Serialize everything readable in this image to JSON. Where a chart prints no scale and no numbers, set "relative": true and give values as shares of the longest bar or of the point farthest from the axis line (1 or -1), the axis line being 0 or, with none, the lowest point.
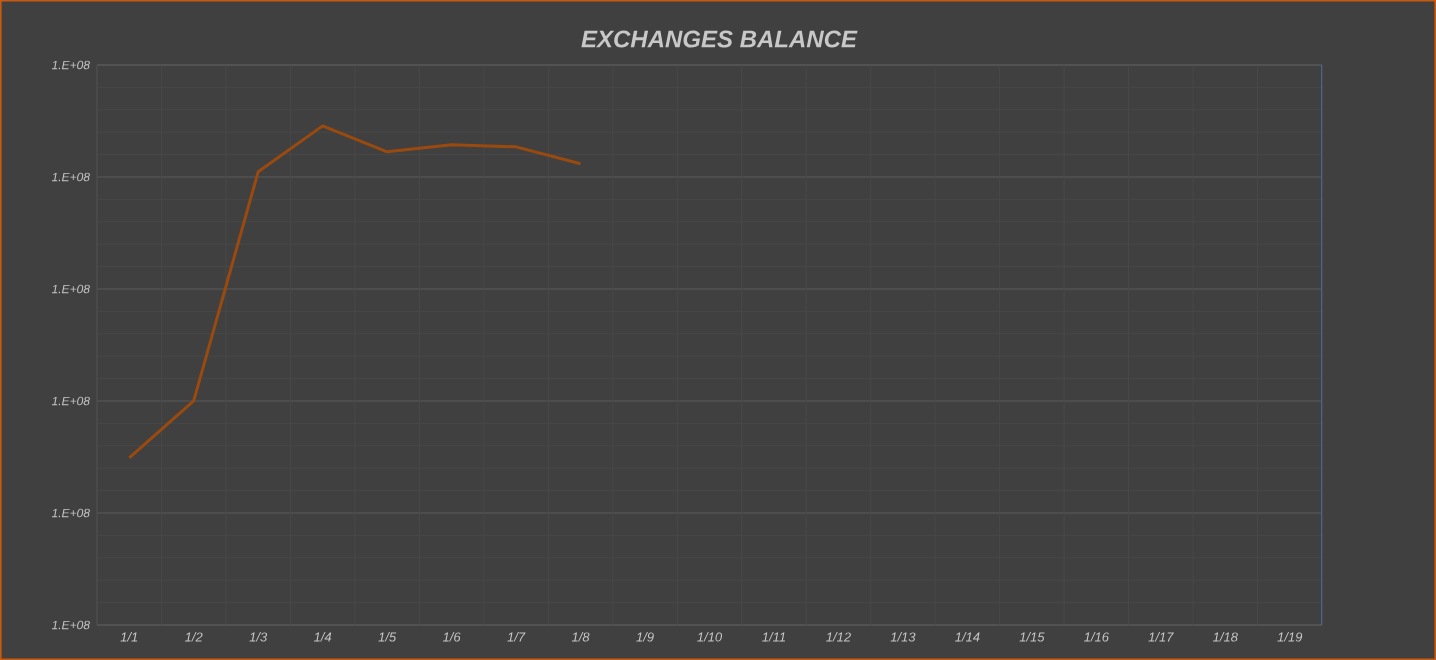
{
  "chart_data": {
    "type": "line",
    "title": "EXCHANGES BALANCE",
    "relative": true,
    "categories": [
      "1/1",
      "1/2",
      "1/3",
      "1/4",
      "1/5",
      "1/6",
      "1/7",
      "1/8",
      "1/9",
      "1/10",
      "1/11",
      "1/12",
      "1/13",
      "1/14",
      "1/15",
      "1/16",
      "1/17",
      "1/18",
      "1/19"
    ],
    "series": [
      {
        "color": "#9a4a0e",
        "values": [
          0.335,
          0.449,
          0.908,
          1,
          0.948,
          0.962,
          0.958,
          0.924,
          null,
          null,
          null,
          null,
          null,
          null,
          null,
          null,
          null,
          null,
          null
        ]
      }
    ],
    "annotations": [
      "1.E+08",
      "1.E+08",
      "1.E+08",
      "1.E+08",
      "1.E+08",
      "1.E+08"
    ],
    "grid": true,
    "marker": "none",
    "line_style": "solid"
  }
}
